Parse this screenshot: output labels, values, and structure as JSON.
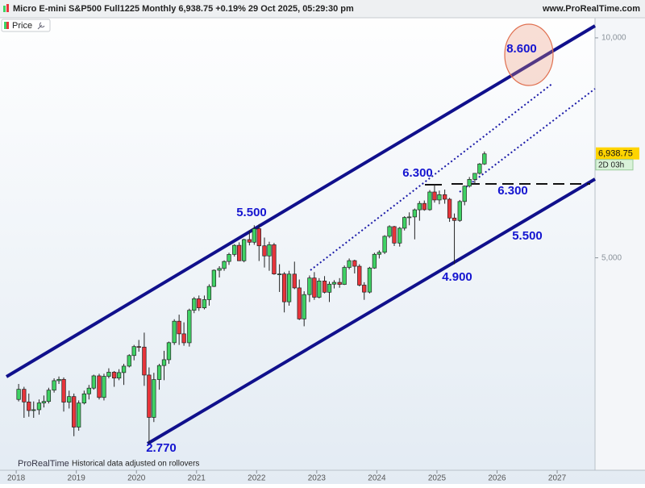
{
  "chart_data": {
    "type": "candlestick",
    "title": "Micro E-mini S&P500 Full1225 Monthly 6,938.75 +0.19% 29 Oct 2025, 05:29:30 pm",
    "source": "www.ProRealTime.com",
    "legend": "Price",
    "log_scale": true,
    "up_color": "#3fd264",
    "down_color": "#e8343a",
    "x": [
      2018.04,
      2018.13,
      2018.21,
      2018.29,
      2018.38,
      2018.46,
      2018.54,
      2018.63,
      2018.71,
      2018.79,
      2018.88,
      2018.96,
      2019.04,
      2019.13,
      2019.21,
      2019.29,
      2019.38,
      2019.46,
      2019.54,
      2019.63,
      2019.71,
      2019.79,
      2019.88,
      2019.96,
      2020.04,
      2020.13,
      2020.21,
      2020.29,
      2020.38,
      2020.46,
      2020.54,
      2020.63,
      2020.71,
      2020.79,
      2020.88,
      2020.96,
      2021.04,
      2021.13,
      2021.21,
      2021.29,
      2021.38,
      2021.46,
      2021.54,
      2021.63,
      2021.71,
      2021.79,
      2021.88,
      2021.96,
      2022.04,
      2022.13,
      2022.21,
      2022.29,
      2022.38,
      2022.46,
      2022.54,
      2022.63,
      2022.71,
      2022.79,
      2022.88,
      2022.96,
      2023.04,
      2023.13,
      2023.21,
      2023.29,
      2023.38,
      2023.46,
      2023.54,
      2023.63,
      2023.71,
      2023.79,
      2023.88,
      2023.96,
      2024.04,
      2024.13,
      2024.21,
      2024.29,
      2024.38,
      2024.46,
      2024.54,
      2024.63,
      2024.71,
      2024.79,
      2024.88,
      2024.96,
      2025.04,
      2025.13,
      2025.21,
      2025.29,
      2025.38,
      2025.46,
      2025.54,
      2025.63,
      2025.71,
      2025.79
    ],
    "open": [
      3200,
      3304,
      3175,
      3090,
      3098,
      3165,
      3180,
      3295,
      3395,
      3409,
      3173,
      3229,
      2933,
      3164,
      3257,
      3316,
      3447,
      3220,
      3442,
      3487,
      3423,
      3483,
      3554,
      3675,
      3780,
      3774,
      3456,
      3024,
      3407,
      3561,
      3627,
      3827,
      4095,
      3935,
      3826,
      4238,
      4395,
      4271,
      4383,
      4569,
      4808,
      4835,
      4943,
      5054,
      5201,
      4954,
      5296,
      5252,
      5481,
      5193,
      5030,
      5210,
      4752,
      4752,
      4353,
      4750,
      4548,
      4124,
      4453,
      4692,
      4416,
      4648,
      4486,
      4602,
      4628,
      4598,
      4851,
      4956,
      4869,
      4588,
      4488,
      4842,
      5056,
      5088,
      5351,
      5517,
      5238,
      5489,
      5678,
      5688,
      5817,
      5935,
      5819,
      6153,
      6000,
      6101,
      6014,
      5668,
      5625,
      5971,
      6267,
      6402,
      6525,
      6721
    ],
    "high": [
      3360,
      3330,
      3260,
      3180,
      3200,
      3240,
      3320,
      3420,
      3440,
      3430,
      3290,
      3260,
      3190,
      3290,
      3350,
      3460,
      3470,
      3470,
      3530,
      3500,
      3520,
      3580,
      3690,
      3800,
      3860,
      3950,
      3540,
      3480,
      3580,
      3730,
      3840,
      4120,
      4180,
      4080,
      4260,
      4420,
      4440,
      4440,
      4600,
      4820,
      4870,
      4960,
      5080,
      5220,
      5250,
      5310,
      5450,
      5540,
      5560,
      5330,
      5260,
      5240,
      4900,
      4780,
      4800,
      4940,
      4670,
      4500,
      4730,
      4780,
      4690,
      4720,
      4640,
      4660,
      4690,
      4880,
      4990,
      4970,
      4900,
      4630,
      4860,
      5080,
      5120,
      5370,
      5540,
      5530,
      5510,
      5700,
      5770,
      5840,
      5980,
      5990,
      6190,
      6300,
      6180,
      6200,
      6040,
      5750,
      6000,
      6280,
      6450,
      6530,
      6740,
      6990
    ],
    "low": [
      3180,
      3020,
      3030,
      3020,
      3050,
      3120,
      3160,
      3270,
      3360,
      3080,
      3110,
      2850,
      2900,
      3150,
      3200,
      3300,
      3200,
      3190,
      3420,
      3330,
      3400,
      3350,
      3540,
      3620,
      3720,
      3340,
      2770,
      2980,
      3300,
      3400,
      3580,
      3800,
      3800,
      3790,
      3780,
      4200,
      4230,
      4250,
      4300,
      4560,
      4700,
      4800,
      4890,
      5020,
      4950,
      4930,
      5200,
      5210,
      4950,
      4850,
      4800,
      4740,
      4490,
      4210,
      4300,
      4530,
      4110,
      4030,
      4350,
      4380,
      4400,
      4470,
      4350,
      4540,
      4550,
      4590,
      4820,
      4760,
      4570,
      4380,
      4470,
      4830,
      4990,
      5060,
      5320,
      5190,
      5180,
      5450,
      5540,
      5300,
      5620,
      5800,
      5800,
      5950,
      5920,
      5930,
      5600,
      4900,
      5600,
      5900,
      6240,
      6300,
      6500,
      6700
    ],
    "close": [
      3304,
      3175,
      3090,
      3098,
      3165,
      3180,
      3295,
      3395,
      3409,
      3173,
      3229,
      2933,
      3164,
      3257,
      3316,
      3447,
      3220,
      3442,
      3487,
      3423,
      3483,
      3554,
      3675,
      3780,
      3774,
      3456,
      3024,
      3407,
      3561,
      3627,
      3827,
      4095,
      3935,
      3826,
      4238,
      4395,
      4271,
      4383,
      4569,
      4808,
      4835,
      4943,
      5054,
      5201,
      4954,
      5296,
      5252,
      5481,
      5193,
      5030,
      5210,
      4752,
      4752,
      4353,
      4750,
      4548,
      4124,
      4453,
      4692,
      4416,
      4648,
      4486,
      4602,
      4628,
      4598,
      4851,
      4956,
      4869,
      4588,
      4488,
      4842,
      5056,
      5088,
      5351,
      5517,
      5238,
      5489,
      5678,
      5688,
      5817,
      5935,
      5819,
      6153,
      6000,
      6101,
      6014,
      5668,
      5625,
      5971,
      6267,
      6402,
      6525,
      6721,
      6939
    ],
    "xlim": [
      2017.73,
      2027.63
    ],
    "xticks": [
      2018,
      2019,
      2020,
      2021,
      2022,
      2023,
      2024,
      2025,
      2026,
      2027
    ],
    "ylim": [
      2560,
      10440
    ],
    "yticks": [
      {
        "value": 5000,
        "label": "5,000"
      },
      {
        "value": 10000,
        "label": "10,000"
      }
    ],
    "last_price": {
      "value": 6938.75,
      "label": "6,938.75"
    },
    "countdown": "2D 03h",
    "annotations": [
      "8.600",
      "5.500",
      "6.300",
      "6.300",
      "5.500",
      "4.900",
      "2.770"
    ],
    "footer": {
      "brand": "ProRealTime",
      "note": "Historical data adjusted on rollovers"
    }
  }
}
